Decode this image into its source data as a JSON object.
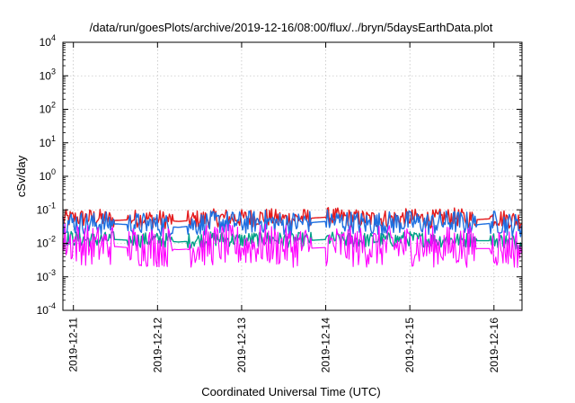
{
  "chart_data": {
    "type": "line",
    "title": "/data/run/goesPlots/archive/2019-12-16/08:00/flux/../bryn/5daysEarthData.plot",
    "xlabel": "Coordinated Universal Time (UTC)",
    "ylabel": "cSv/day",
    "yscale": "log",
    "ylim": [
      0.0001,
      10000
    ],
    "xlim": [
      "2019-12-10T21:00",
      "2019-12-16T08:00"
    ],
    "grid": true,
    "y_ticks": [
      {
        "value": 0.0001,
        "base": "10",
        "exp": "-4"
      },
      {
        "value": 0.001,
        "base": "10",
        "exp": "-3"
      },
      {
        "value": 0.01,
        "base": "10",
        "exp": "-2"
      },
      {
        "value": 0.1,
        "base": "10",
        "exp": "-1"
      },
      {
        "value": 1,
        "base": "10",
        "exp": "0"
      },
      {
        "value": 10,
        "base": "10",
        "exp": "1"
      },
      {
        "value": 100,
        "base": "10",
        "exp": "2"
      },
      {
        "value": 1000,
        "base": "10",
        "exp": "3"
      },
      {
        "value": 10000,
        "base": "10",
        "exp": "4"
      }
    ],
    "x_ticks": [
      "2019-12-11",
      "2019-12-12",
      "2019-12-13",
      "2019-12-14",
      "2019-12-15",
      "2019-12-16"
    ],
    "series": [
      {
        "color": "#e41a1c",
        "points": [
          [
            "2019-12-10T21:00",
            0.05
          ],
          [
            "2019-12-11T06:00",
            0.055
          ],
          [
            "2019-12-11T12:00",
            0.048
          ],
          [
            "2019-12-11T18:00",
            0.052
          ],
          [
            "2019-12-12T00:00",
            0.05
          ],
          [
            "2019-12-12T06:00",
            0.045
          ],
          [
            "2019-12-12T12:00",
            0.05
          ],
          [
            "2019-12-12T18:00",
            0.055
          ],
          [
            "2019-12-13T00:00",
            0.052
          ],
          [
            "2019-12-13T06:00",
            0.058
          ],
          [
            "2019-12-13T12:00",
            0.05
          ],
          [
            "2019-12-13T18:00",
            0.055
          ],
          [
            "2019-12-14T00:00",
            0.06
          ],
          [
            "2019-12-14T06:00",
            0.055
          ],
          [
            "2019-12-14T12:00",
            0.05
          ],
          [
            "2019-12-14T18:00",
            0.052
          ],
          [
            "2019-12-15T00:00",
            0.055
          ],
          [
            "2019-12-15T06:00",
            0.05
          ],
          [
            "2019-12-15T12:00",
            0.058
          ],
          [
            "2019-12-15T18:00",
            0.05
          ],
          [
            "2019-12-16T00:00",
            0.055
          ],
          [
            "2019-12-16T08:00",
            0.045
          ]
        ]
      },
      {
        "color": "#00a087",
        "points": [
          [
            "2019-12-10T21:00",
            0.014
          ],
          [
            "2019-12-11T06:00",
            0.012
          ],
          [
            "2019-12-11T12:00",
            0.013
          ],
          [
            "2019-12-11T18:00",
            0.012
          ],
          [
            "2019-12-12T00:00",
            0.012
          ],
          [
            "2019-12-12T06:00",
            0.011
          ],
          [
            "2019-12-12T12:00",
            0.012
          ],
          [
            "2019-12-12T18:00",
            0.013
          ],
          [
            "2019-12-13T00:00",
            0.012
          ],
          [
            "2019-12-13T06:00",
            0.013
          ],
          [
            "2019-12-13T12:00",
            0.012
          ],
          [
            "2019-12-13T18:00",
            0.012
          ],
          [
            "2019-12-14T00:00",
            0.013
          ],
          [
            "2019-12-14T06:00",
            0.012
          ],
          [
            "2019-12-14T12:00",
            0.012
          ],
          [
            "2019-12-14T18:00",
            0.012
          ],
          [
            "2019-12-15T00:00",
            0.013
          ],
          [
            "2019-12-15T06:00",
            0.012
          ],
          [
            "2019-12-15T12:00",
            0.012
          ],
          [
            "2019-12-15T18:00",
            0.012
          ],
          [
            "2019-12-16T00:00",
            0.012
          ],
          [
            "2019-12-16T08:00",
            0.01
          ]
        ]
      },
      {
        "color": "#1e6fe0",
        "points": [
          [
            "2019-12-10T21:00",
            0.04
          ],
          [
            "2019-12-11T06:00",
            0.035
          ],
          [
            "2019-12-11T12:00",
            0.038
          ],
          [
            "2019-12-11T18:00",
            0.035
          ],
          [
            "2019-12-12T00:00",
            0.033
          ],
          [
            "2019-12-12T06:00",
            0.03
          ],
          [
            "2019-12-12T12:00",
            0.035
          ],
          [
            "2019-12-12T18:00",
            0.04
          ],
          [
            "2019-12-13T00:00",
            0.038
          ],
          [
            "2019-12-13T06:00",
            0.042
          ],
          [
            "2019-12-13T12:00",
            0.035
          ],
          [
            "2019-12-13T18:00",
            0.04
          ],
          [
            "2019-12-14T00:00",
            0.045
          ],
          [
            "2019-12-14T06:00",
            0.04
          ],
          [
            "2019-12-14T12:00",
            0.035
          ],
          [
            "2019-12-14T18:00",
            0.038
          ],
          [
            "2019-12-15T00:00",
            0.04
          ],
          [
            "2019-12-15T06:00",
            0.035
          ],
          [
            "2019-12-15T12:00",
            0.042
          ],
          [
            "2019-12-15T18:00",
            0.035
          ],
          [
            "2019-12-16T00:00",
            0.04
          ],
          [
            "2019-12-16T08:00",
            0.03
          ]
        ]
      },
      {
        "color": "#ff00ff",
        "points": [
          [
            "2019-12-10T21:00",
            0.01
          ],
          [
            "2019-12-11T06:00",
            0.007
          ],
          [
            "2019-12-11T12:00",
            0.008
          ],
          [
            "2019-12-11T18:00",
            0.007
          ],
          [
            "2019-12-12T00:00",
            0.007
          ],
          [
            "2019-12-12T06:00",
            0.0065
          ],
          [
            "2019-12-12T12:00",
            0.007
          ],
          [
            "2019-12-12T18:00",
            0.008
          ],
          [
            "2019-12-13T00:00",
            0.007
          ],
          [
            "2019-12-13T06:00",
            0.008
          ],
          [
            "2019-12-13T12:00",
            0.007
          ],
          [
            "2019-12-13T18:00",
            0.007
          ],
          [
            "2019-12-14T00:00",
            0.0075
          ],
          [
            "2019-12-14T06:00",
            0.007
          ],
          [
            "2019-12-14T12:00",
            0.0068
          ],
          [
            "2019-12-14T18:00",
            0.007
          ],
          [
            "2019-12-15T00:00",
            0.0075
          ],
          [
            "2019-12-15T06:00",
            0.007
          ],
          [
            "2019-12-15T12:00",
            0.007
          ],
          [
            "2019-12-15T18:00",
            0.007
          ],
          [
            "2019-12-16T00:00",
            0.007
          ],
          [
            "2019-12-16T08:00",
            0.006
          ]
        ]
      }
    ]
  }
}
